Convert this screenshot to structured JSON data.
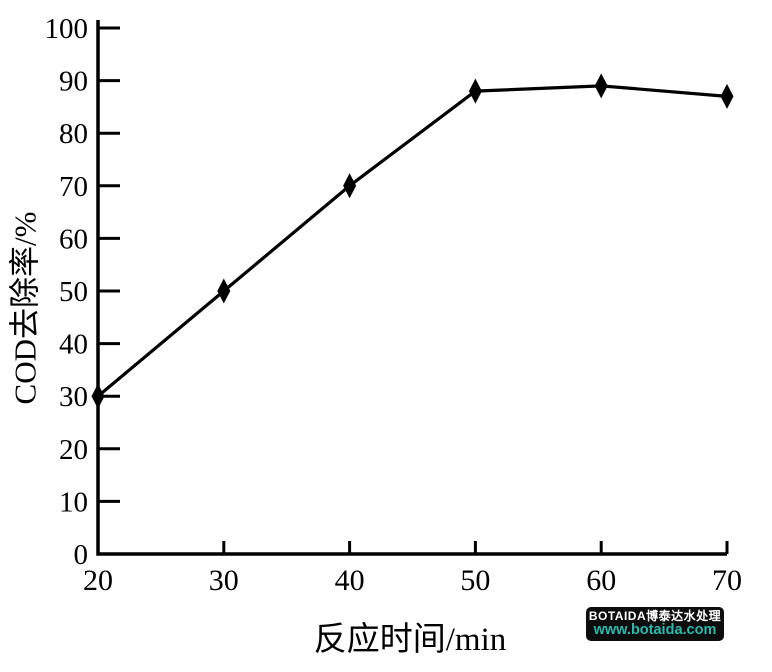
{
  "figure": {
    "background": "#ffffff",
    "axis_color": "#000000"
  },
  "chart_data": {
    "type": "line",
    "series": [
      {
        "name": "COD去除率",
        "x": [
          20,
          30,
          40,
          50,
          60,
          70
        ],
        "values": [
          30,
          50,
          70,
          88,
          89,
          87
        ],
        "marker": "diamond",
        "color": "#000000"
      }
    ],
    "xlabel": "反应时间/min",
    "ylabel": "COD去除率/%",
    "xlim": [
      20,
      70
    ],
    "ylim": [
      0,
      100
    ],
    "x_ticks": [
      20,
      30,
      40,
      50,
      60,
      70
    ],
    "y_ticks": [
      0,
      10,
      20,
      30,
      40,
      50,
      60,
      70,
      80,
      90,
      100
    ],
    "grid": false,
    "legend_position": "none"
  },
  "watermark": {
    "line1": "BOTAIDA博泰达水处理",
    "line2": "www.botaida.com",
    "bg_color": "#0d0d0d",
    "line1_color": "#ffffff",
    "line2_color": "#2cb9af"
  }
}
